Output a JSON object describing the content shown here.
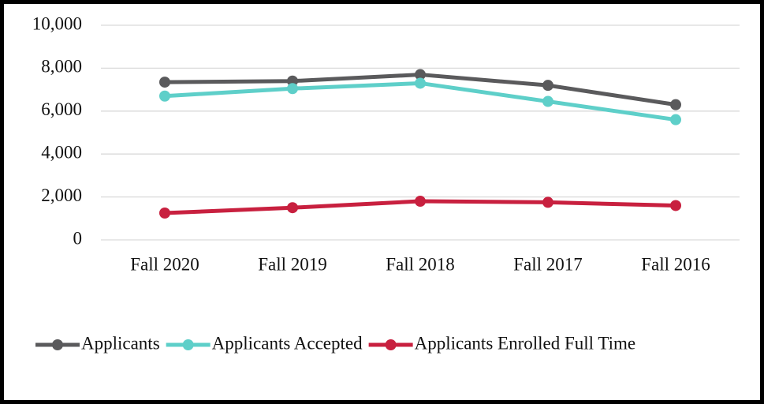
{
  "chart_data": {
    "type": "line",
    "categories": [
      "Fall 2020",
      "Fall 2019",
      "Fall 2018",
      "Fall 2017",
      "Fall 2016"
    ],
    "series": [
      {
        "name": "Applicants",
        "color": "#5a5a5c",
        "values": [
          7350,
          7400,
          7700,
          7200,
          6300
        ]
      },
      {
        "name": "Applicants Accepted",
        "color": "#5ecfc9",
        "values": [
          6700,
          7050,
          7300,
          6450,
          5600
        ]
      },
      {
        "name": "Applicants Enrolled Full Time",
        "color": "#c8203f",
        "values": [
          1250,
          1500,
          1800,
          1750,
          1600
        ]
      }
    ],
    "ylim": [
      0,
      10000
    ],
    "yticks": [
      0,
      {
        "value": 2000,
        "label": "2,000"
      },
      {
        "value": 4000,
        "label": "4,000"
      },
      {
        "value": 6000,
        "label": "6,000"
      },
      {
        "value": 8000,
        "label": "8,000"
      },
      {
        "value": 10000,
        "label": "10,000"
      }
    ],
    "grid": true,
    "legend": "bottom"
  }
}
